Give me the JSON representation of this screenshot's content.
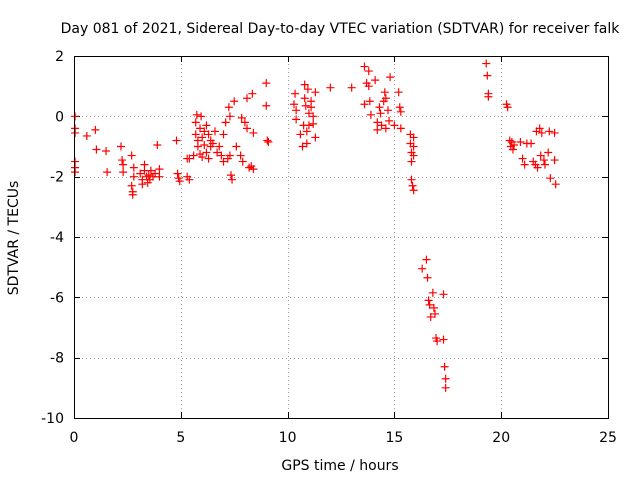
{
  "chart_data": {
    "type": "scatter",
    "title": "Day 081 of 2021, Sidereal Day-to-day VTEC variation (SDTVAR) for receiver falk",
    "xlabel": "GPS time / hours",
    "ylabel": "SDTVAR / TECUs",
    "xlim": [
      0,
      25
    ],
    "ylim": [
      -10,
      2
    ],
    "xticks": [
      0,
      5,
      10,
      15,
      20,
      25
    ],
    "yticks": [
      -10,
      -8,
      -6,
      -4,
      -2,
      0,
      2
    ],
    "xtick_labels": [
      "0",
      "5",
      "10",
      "15",
      "20",
      "25"
    ],
    "ytick_labels": [
      "-10",
      "-8",
      "-6",
      "-4",
      "-2",
      "0",
      "2"
    ],
    "grid": true,
    "marker": "+",
    "color": "#ff0000",
    "series": [
      {
        "name": "SDTVAR",
        "points": [
          [
            0.05,
            0.0
          ],
          [
            0.05,
            -0.4
          ],
          [
            0.05,
            -0.55
          ],
          [
            0.05,
            -1.5
          ],
          [
            0.05,
            -1.7
          ],
          [
            0.05,
            -1.85
          ],
          [
            0.6,
            -0.65
          ],
          [
            1.0,
            -0.45
          ],
          [
            1.05,
            -1.1
          ],
          [
            1.5,
            -1.15
          ],
          [
            1.55,
            -1.85
          ],
          [
            2.2,
            -1.0
          ],
          [
            2.25,
            -1.45
          ],
          [
            2.3,
            -1.6
          ],
          [
            2.3,
            -1.85
          ],
          [
            2.7,
            -1.3
          ],
          [
            2.7,
            -2.3
          ],
          [
            2.75,
            -2.5
          ],
          [
            2.75,
            -2.6
          ],
          [
            2.8,
            -1.7
          ],
          [
            2.8,
            -2.0
          ],
          [
            3.1,
            -1.9
          ],
          [
            3.2,
            -2.1
          ],
          [
            3.2,
            -2.25
          ],
          [
            3.3,
            -1.6
          ],
          [
            3.3,
            -1.8
          ],
          [
            3.4,
            -2.0
          ],
          [
            3.45,
            -2.2
          ],
          [
            3.5,
            -1.95
          ],
          [
            3.55,
            -2.1
          ],
          [
            3.6,
            -1.8
          ],
          [
            3.7,
            -2.0
          ],
          [
            3.8,
            -1.9
          ],
          [
            3.9,
            -0.95
          ],
          [
            4.0,
            -1.75
          ],
          [
            4.0,
            -2.0
          ],
          [
            4.8,
            -0.8
          ],
          [
            4.85,
            -1.9
          ],
          [
            4.9,
            -2.05
          ],
          [
            4.95,
            -2.15
          ],
          [
            5.3,
            -1.4
          ],
          [
            5.3,
            -2.0
          ],
          [
            5.4,
            -1.4
          ],
          [
            5.4,
            -2.1
          ],
          [
            5.6,
            -1.3
          ],
          [
            5.7,
            -0.2
          ],
          [
            5.7,
            -0.6
          ],
          [
            5.75,
            0.05
          ],
          [
            5.8,
            -0.8
          ],
          [
            5.8,
            -1.0
          ],
          [
            5.9,
            -0.4
          ],
          [
            5.9,
            -1.25
          ],
          [
            5.95,
            0.0
          ],
          [
            6.0,
            -0.7
          ],
          [
            6.0,
            -1.35
          ],
          [
            6.1,
            -0.5
          ],
          [
            6.1,
            -0.95
          ],
          [
            6.2,
            -0.3
          ],
          [
            6.2,
            -1.2
          ],
          [
            6.3,
            -0.6
          ],
          [
            6.3,
            -1.4
          ],
          [
            6.4,
            -0.8
          ],
          [
            6.4,
            -1.0
          ],
          [
            6.5,
            -0.9
          ],
          [
            6.6,
            -0.5
          ],
          [
            6.7,
            -1.2
          ],
          [
            6.8,
            -1.0
          ],
          [
            6.9,
            -1.3
          ],
          [
            7.0,
            -1.5
          ],
          [
            7.0,
            -0.6
          ],
          [
            7.1,
            -0.2
          ],
          [
            7.2,
            -1.4
          ],
          [
            7.25,
            0.3
          ],
          [
            7.3,
            0.0
          ],
          [
            7.3,
            -1.3
          ],
          [
            7.35,
            -1.95
          ],
          [
            7.4,
            -2.1
          ],
          [
            7.5,
            0.5
          ],
          [
            7.6,
            -1.0
          ],
          [
            7.8,
            -1.3
          ],
          [
            7.85,
            -0.05
          ],
          [
            7.9,
            -1.5
          ],
          [
            8.0,
            -0.2
          ],
          [
            8.1,
            0.6
          ],
          [
            8.1,
            -0.4
          ],
          [
            8.2,
            -1.7
          ],
          [
            8.3,
            -1.65
          ],
          [
            8.35,
            0.75
          ],
          [
            8.4,
            -0.55
          ],
          [
            8.4,
            -1.75
          ],
          [
            9.0,
            1.1
          ],
          [
            9.0,
            0.35
          ],
          [
            9.05,
            -0.8
          ],
          [
            9.1,
            -0.85
          ],
          [
            10.3,
            0.4
          ],
          [
            10.35,
            0.75
          ],
          [
            10.4,
            0.2
          ],
          [
            10.4,
            -0.1
          ],
          [
            10.6,
            -0.6
          ],
          [
            10.7,
            -1.0
          ],
          [
            10.75,
            -0.3
          ],
          [
            10.8,
            1.05
          ],
          [
            10.8,
            0.6
          ],
          [
            10.85,
            0.35
          ],
          [
            10.9,
            -0.5
          ],
          [
            10.9,
            -0.9
          ],
          [
            10.95,
            0.9
          ],
          [
            11.0,
            0.1
          ],
          [
            11.0,
            -0.3
          ],
          [
            11.1,
            0.5
          ],
          [
            11.1,
            0.3
          ],
          [
            11.2,
            0.0
          ],
          [
            11.2,
            -0.25
          ],
          [
            11.3,
            0.8
          ],
          [
            11.3,
            -0.7
          ],
          [
            12.0,
            0.95
          ],
          [
            13.0,
            0.95
          ],
          [
            13.6,
            1.65
          ],
          [
            13.6,
            0.4
          ],
          [
            13.7,
            1.1
          ],
          [
            13.8,
            1.5
          ],
          [
            13.8,
            1.0
          ],
          [
            13.85,
            0.5
          ],
          [
            13.9,
            0.05
          ],
          [
            14.1,
            1.2
          ],
          [
            14.2,
            -0.2
          ],
          [
            14.2,
            -0.45
          ],
          [
            14.3,
            0.3
          ],
          [
            14.35,
            0.1
          ],
          [
            14.4,
            -0.3
          ],
          [
            14.5,
            0.5
          ],
          [
            14.55,
            0.8
          ],
          [
            14.6,
            0.6
          ],
          [
            14.6,
            -0.4
          ],
          [
            14.7,
            0.2
          ],
          [
            14.75,
            -0.15
          ],
          [
            14.8,
            1.3
          ],
          [
            15.0,
            -0.3
          ],
          [
            15.2,
            0.8
          ],
          [
            15.25,
            0.3
          ],
          [
            15.3,
            -0.4
          ],
          [
            15.3,
            0.15
          ],
          [
            15.75,
            -0.6
          ],
          [
            15.75,
            -0.9
          ],
          [
            15.8,
            -1.2
          ],
          [
            15.8,
            -1.5
          ],
          [
            15.8,
            -2.1
          ],
          [
            15.85,
            -2.3
          ],
          [
            15.9,
            -0.7
          ],
          [
            15.9,
            -1.0
          ],
          [
            15.9,
            -1.3
          ],
          [
            15.9,
            -2.45
          ],
          [
            16.3,
            -5.05
          ],
          [
            16.5,
            -4.75
          ],
          [
            16.55,
            -5.35
          ],
          [
            16.6,
            -6.1
          ],
          [
            16.65,
            -6.25
          ],
          [
            16.7,
            -6.65
          ],
          [
            16.8,
            -5.85
          ],
          [
            16.85,
            -6.35
          ],
          [
            16.9,
            -6.55
          ],
          [
            16.95,
            -7.35
          ],
          [
            17.0,
            -7.45
          ],
          [
            17.3,
            -5.9
          ],
          [
            17.3,
            -7.4
          ],
          [
            17.35,
            -8.3
          ],
          [
            17.4,
            -8.7
          ],
          [
            17.4,
            -9.0
          ],
          [
            19.3,
            1.75
          ],
          [
            19.35,
            1.35
          ],
          [
            19.4,
            0.75
          ],
          [
            19.4,
            0.65
          ],
          [
            20.25,
            0.4
          ],
          [
            20.3,
            0.3
          ],
          [
            20.4,
            -0.8
          ],
          [
            20.45,
            -1.0
          ],
          [
            20.5,
            -0.85
          ],
          [
            20.55,
            -1.1
          ],
          [
            20.6,
            -0.95
          ],
          [
            20.9,
            -0.85
          ],
          [
            21.0,
            -1.4
          ],
          [
            21.1,
            -1.6
          ],
          [
            21.2,
            -0.9
          ],
          [
            21.4,
            -0.9
          ],
          [
            21.5,
            -1.5
          ],
          [
            21.6,
            -1.6
          ],
          [
            21.65,
            -0.5
          ],
          [
            21.7,
            -1.7
          ],
          [
            21.8,
            -0.4
          ],
          [
            21.85,
            -1.3
          ],
          [
            21.9,
            -0.55
          ],
          [
            22.0,
            -1.45
          ],
          [
            22.05,
            -1.6
          ],
          [
            22.2,
            -1.2
          ],
          [
            22.25,
            -0.5
          ],
          [
            22.3,
            -2.05
          ],
          [
            22.5,
            -1.45
          ],
          [
            22.5,
            -0.55
          ],
          [
            22.55,
            -2.25
          ]
        ]
      }
    ]
  }
}
